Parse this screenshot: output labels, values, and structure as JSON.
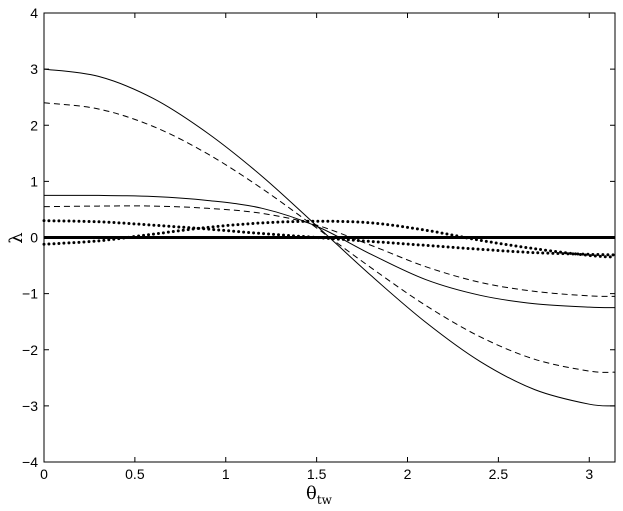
{
  "chart_data": {
    "type": "line",
    "title": "",
    "xlabel": "θ",
    "xlabel_subscript": "tw",
    "ylabel": "λ",
    "xlim": [
      0,
      3.14159
    ],
    "ylim": [
      -4,
      4
    ],
    "grid": false,
    "legend": "none",
    "x_ticks": [
      0,
      0.5,
      1,
      1.5,
      2,
      2.5,
      3
    ],
    "x_tick_labels": [
      "0",
      "0.5",
      "1",
      "1.5",
      "2",
      "2.5",
      "3"
    ],
    "y_ticks": [
      -4,
      -3,
      -2,
      -1,
      0,
      1,
      2,
      3,
      4
    ],
    "y_tick_labels": [
      "−4",
      "−3",
      "−2",
      "−1",
      "0",
      "1",
      "2",
      "3",
      "4"
    ],
    "series": [
      {
        "style": "solid",
        "x": [
          0,
          0.3,
          0.6,
          0.9,
          1.2,
          1.5,
          1.8,
          2.1,
          2.4,
          2.7,
          3.0,
          3.14
        ],
        "y": [
          3.0,
          2.87,
          2.48,
          1.86,
          1.09,
          0.21,
          -0.68,
          -1.51,
          -2.21,
          -2.71,
          -2.97,
          -3.0
        ]
      },
      {
        "style": "dashed",
        "x": [
          0,
          0.3,
          0.6,
          0.9,
          1.2,
          1.5,
          1.8,
          2.1,
          2.4,
          2.7,
          3.0,
          3.14
        ],
        "y": [
          2.4,
          2.29,
          1.98,
          1.49,
          0.87,
          0.17,
          -0.54,
          -1.21,
          -1.77,
          -2.17,
          -2.38,
          -2.4
        ]
      },
      {
        "style": "solid",
        "x": [
          0,
          0.3,
          0.6,
          0.9,
          1.2,
          1.5,
          1.8,
          2.1,
          2.4,
          2.7,
          3.0,
          3.14
        ],
        "y": [
          0.75,
          0.75,
          0.73,
          0.66,
          0.52,
          0.2,
          -0.3,
          -0.75,
          -1.03,
          -1.18,
          -1.24,
          -1.25
        ]
      },
      {
        "style": "dashed",
        "x": [
          0,
          0.3,
          0.6,
          0.9,
          1.2,
          1.5,
          1.8,
          2.1,
          2.4,
          2.7,
          3.0,
          3.14
        ],
        "y": [
          0.55,
          0.56,
          0.56,
          0.52,
          0.43,
          0.22,
          -0.14,
          -0.52,
          -0.8,
          -0.96,
          -1.04,
          -1.05
        ]
      },
      {
        "style": "dotted",
        "x": [
          0,
          0.3,
          0.6,
          0.9,
          1.2,
          1.5,
          1.8,
          2.1,
          2.4,
          2.7,
          3.0,
          3.14
        ],
        "y": [
          0.3,
          0.28,
          0.22,
          0.15,
          0.07,
          0.0,
          -0.07,
          -0.14,
          -0.21,
          -0.27,
          -0.3,
          -0.31
        ]
      },
      {
        "style": "dotted",
        "x": [
          0,
          0.3,
          0.6,
          0.9,
          1.2,
          1.5,
          1.8,
          2.1,
          2.4,
          2.7,
          3.0,
          3.14
        ],
        "y": [
          -0.12,
          -0.06,
          0.06,
          0.18,
          0.26,
          0.29,
          0.26,
          0.13,
          -0.05,
          -0.2,
          -0.32,
          -0.35
        ]
      },
      {
        "style": "thick",
        "x": [
          0,
          3.14
        ],
        "y": [
          0,
          0
        ]
      }
    ]
  }
}
